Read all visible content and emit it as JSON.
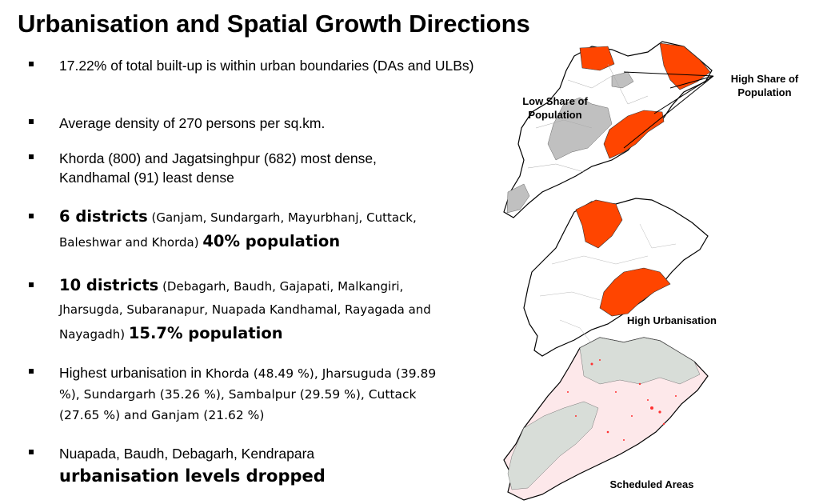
{
  "title": "Urbanisation and Spatial Growth Directions",
  "bullets": {
    "b1": "17.22% of total built-up is within urban boundaries (DAs and ULBs)",
    "b2": "Average density of 270 persons per sq.km.",
    "b3": "Khorda (800) and Jagatsinghpur (682) most dense, Kandhamal (91) least dense",
    "b4": {
      "lead": "6 districts",
      "detail": " (Ganjam, Sundargarh, Mayurbhanj, Cuttack, Baleshwar and Khorda) ",
      "tail": "40% population"
    },
    "b5": {
      "lead": "10 districts",
      "detail": " (Debagarh, Baudh, Gajapati, Malkangiri, Jharsugda, Subaranapur, Nuapada Kandhamal, Rayagada and Nayagadh) ",
      "tail": "15.7% population"
    },
    "b6": {
      "lead": "Highest urbanisation in ",
      "detail": "Khorda (48.49 %), Jharsuguda (39.89 %), Sundargarh (35.26 %), Sambalpur (29.59 %), Cuttack (27.65 %) and Ganjam (21.62 %)"
    },
    "b7": {
      "line1": "Nuapada, Baudh, Debagarh, Kendrapara",
      "line2": "urbanisation levels dropped"
    }
  },
  "maps": {
    "map1_label_low": "Low Share of Population",
    "map1_label_high": "High Share of Population",
    "map2_label": "High Urbanisation",
    "map3_label": "Scheduled Areas"
  },
  "colors": {
    "highlight": "#ff4500",
    "grey": "#c0c0c0",
    "outline": "#000000",
    "scheduled": "#d8ddd8",
    "urban_dots": "#ff3030"
  }
}
